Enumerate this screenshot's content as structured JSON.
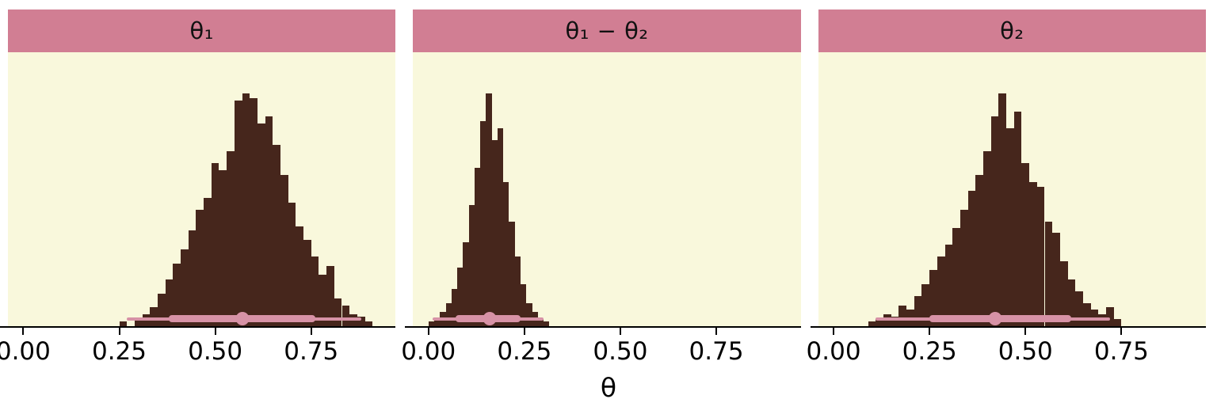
{
  "colors": {
    "strip_bg": "#d17e93",
    "strip_text": "#111111",
    "panel_bg": "#f9f8dc",
    "bar_fill": "#46261c",
    "interval": "#d792a6",
    "axis": "#000000"
  },
  "chart_data": {
    "type": "histogram",
    "xlabel": "θ",
    "x_range": [
      -0.04,
      0.97
    ],
    "x_ticks": [
      0.0,
      0.25,
      0.5,
      0.75
    ],
    "x_tick_labels": [
      "0.00",
      "0.25",
      "0.50",
      "0.75"
    ],
    "bar_max_fraction": 0.85,
    "facets": [
      {
        "title": "θ₁",
        "bin_width": 0.02,
        "bins": [
          [
            0.25,
            0.02
          ],
          [
            0.27,
            0.0
          ],
          [
            0.29,
            0.03
          ],
          [
            0.31,
            0.05
          ],
          [
            0.33,
            0.08
          ],
          [
            0.35,
            0.14
          ],
          [
            0.37,
            0.2
          ],
          [
            0.39,
            0.27
          ],
          [
            0.41,
            0.33
          ],
          [
            0.43,
            0.41
          ],
          [
            0.45,
            0.5
          ],
          [
            0.47,
            0.55
          ],
          [
            0.49,
            0.7
          ],
          [
            0.51,
            0.67
          ],
          [
            0.53,
            0.75
          ],
          [
            0.55,
            0.97
          ],
          [
            0.57,
            1.0
          ],
          [
            0.59,
            0.98
          ],
          [
            0.61,
            0.87
          ],
          [
            0.63,
            0.9
          ],
          [
            0.65,
            0.78
          ],
          [
            0.67,
            0.65
          ],
          [
            0.69,
            0.53
          ],
          [
            0.71,
            0.43
          ],
          [
            0.73,
            0.37
          ],
          [
            0.75,
            0.3
          ],
          [
            0.77,
            0.22
          ],
          [
            0.79,
            0.26
          ],
          [
            0.81,
            0.12
          ],
          [
            0.83,
            0.09
          ],
          [
            0.85,
            0.05
          ],
          [
            0.87,
            0.04
          ],
          [
            0.89,
            0.02
          ]
        ],
        "point": 0.57,
        "interval_inner": [
          0.38,
          0.76
        ],
        "interval_outer": [
          0.27,
          0.88
        ]
      },
      {
        "title": "θ₁ − θ₂",
        "bin_width": 0.015,
        "bins": [
          [
            0.0,
            0.02
          ],
          [
            0.015,
            0.03
          ],
          [
            0.03,
            0.06
          ],
          [
            0.045,
            0.1
          ],
          [
            0.06,
            0.16
          ],
          [
            0.075,
            0.25
          ],
          [
            0.09,
            0.36
          ],
          [
            0.105,
            0.52
          ],
          [
            0.12,
            0.68
          ],
          [
            0.135,
            0.88
          ],
          [
            0.15,
            1.0
          ],
          [
            0.165,
            0.8
          ],
          [
            0.18,
            0.85
          ],
          [
            0.195,
            0.62
          ],
          [
            0.21,
            0.45
          ],
          [
            0.225,
            0.3
          ],
          [
            0.24,
            0.18
          ],
          [
            0.255,
            0.1
          ],
          [
            0.27,
            0.06
          ],
          [
            0.285,
            0.03
          ],
          [
            0.3,
            0.02
          ]
        ],
        "point": 0.16,
        "interval_inner": [
          0.07,
          0.24
        ],
        "interval_outer": [
          0.01,
          0.3
        ]
      },
      {
        "title": "θ₂",
        "bin_width": 0.02,
        "bins": [
          [
            0.09,
            0.02
          ],
          [
            0.11,
            0.03
          ],
          [
            0.13,
            0.05
          ],
          [
            0.15,
            0.04
          ],
          [
            0.17,
            0.09
          ],
          [
            0.19,
            0.07
          ],
          [
            0.21,
            0.13
          ],
          [
            0.23,
            0.18
          ],
          [
            0.25,
            0.24
          ],
          [
            0.27,
            0.3
          ],
          [
            0.29,
            0.35
          ],
          [
            0.31,
            0.42
          ],
          [
            0.33,
            0.5
          ],
          [
            0.35,
            0.58
          ],
          [
            0.37,
            0.65
          ],
          [
            0.39,
            0.75
          ],
          [
            0.41,
            0.9
          ],
          [
            0.43,
            1.0
          ],
          [
            0.45,
            0.85
          ],
          [
            0.47,
            0.92
          ],
          [
            0.49,
            0.7
          ],
          [
            0.51,
            0.62
          ],
          [
            0.53,
            0.6
          ],
          [
            0.55,
            0.45
          ],
          [
            0.57,
            0.4
          ],
          [
            0.59,
            0.28
          ],
          [
            0.61,
            0.2
          ],
          [
            0.63,
            0.15
          ],
          [
            0.65,
            0.1
          ],
          [
            0.67,
            0.07
          ],
          [
            0.69,
            0.05
          ],
          [
            0.71,
            0.08
          ],
          [
            0.73,
            0.03
          ]
        ],
        "point": 0.42,
        "interval_inner": [
          0.25,
          0.62
        ],
        "interval_outer": [
          0.11,
          0.72
        ]
      }
    ]
  }
}
